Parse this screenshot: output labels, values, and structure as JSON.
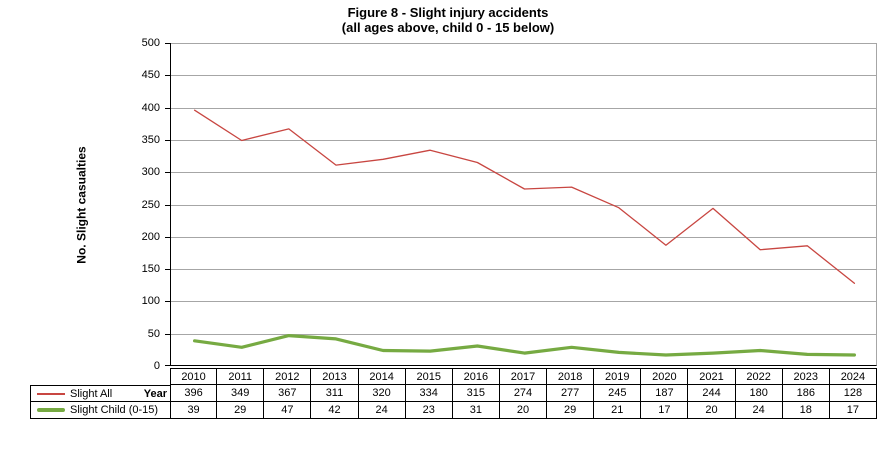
{
  "chart_data": {
    "type": "line",
    "title": "Figure 8 - Slight injury accidents",
    "subtitle": "(all ages above, child 0 - 15 below)",
    "xlabel": "Year",
    "ylabel": "No. Slight casualties",
    "categories": [
      "2010",
      "2011",
      "2012",
      "2013",
      "2014",
      "2015",
      "2016",
      "2017",
      "2018",
      "2019",
      "2020",
      "2021",
      "2022",
      "2023",
      "2024"
    ],
    "series": [
      {
        "name": "Slight All",
        "values": [
          396,
          349,
          367,
          311,
          320,
          334,
          315,
          274,
          277,
          245,
          187,
          244,
          180,
          186,
          128
        ],
        "color": "#c84641",
        "stroke_width": 1.3
      },
      {
        "name": "Slight Child (0-15)",
        "values": [
          39,
          29,
          47,
          42,
          24,
          23,
          31,
          20,
          29,
          21,
          17,
          20,
          24,
          18,
          17
        ],
        "color": "#76aa42",
        "stroke_width": 3.2
      }
    ],
    "ylim": [
      0,
      500
    ],
    "yticks": [
      0,
      50,
      100,
      150,
      200,
      250,
      300,
      350,
      400,
      450,
      500
    ],
    "grid": true,
    "legend_position": "data-table-left",
    "colors": {
      "gridline": "#a6a6a6",
      "axis": "#000000",
      "plot_border": "#a6a6a6",
      "text": "#000000",
      "background": "#ffffff"
    }
  }
}
